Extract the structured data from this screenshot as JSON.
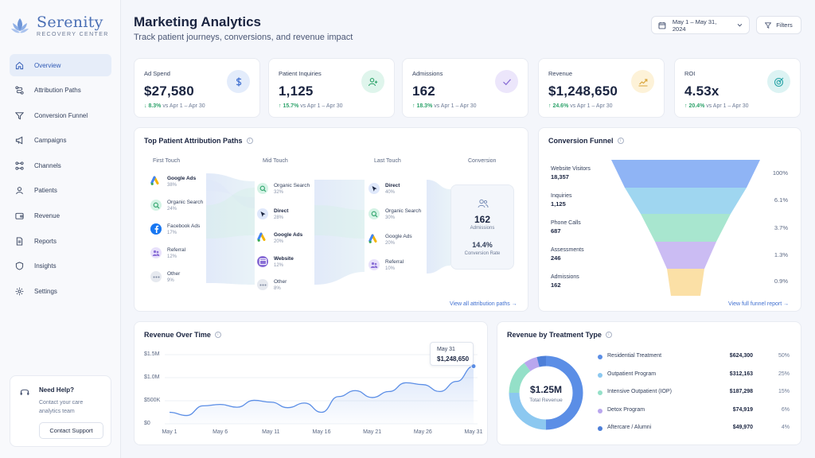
{
  "brand": {
    "name": "Serenity",
    "subtitle": "RECOVERY CENTER"
  },
  "nav": [
    {
      "label": "Overview",
      "icon": "home-icon",
      "active": true
    },
    {
      "label": "Attribution Paths",
      "icon": "paths-icon"
    },
    {
      "label": "Conversion Funnel",
      "icon": "funnel-icon"
    },
    {
      "label": "Campaigns",
      "icon": "megaphone-icon"
    },
    {
      "label": "Channels",
      "icon": "channels-icon"
    },
    {
      "label": "Patients",
      "icon": "user-icon"
    },
    {
      "label": "Revenue",
      "icon": "wallet-icon"
    },
    {
      "label": "Reports",
      "icon": "document-icon"
    },
    {
      "label": "Insights",
      "icon": "shield-icon"
    },
    {
      "label": "Settings",
      "icon": "gear-icon"
    }
  ],
  "help": {
    "title": "Need Help?",
    "desc": "Contact your care analytics team",
    "button": "Contact Support"
  },
  "header": {
    "title": "Marketing Analytics",
    "subtitle": "Track patient journeys, conversions, and revenue impact",
    "date_range": "May 1 – May 31, 2024",
    "filters": "Filters"
  },
  "kpis": [
    {
      "label": "Ad Spend",
      "value": "$27,580",
      "change": "↓ 8.3%",
      "compare": "vs Apr 1 – Apr 30",
      "icon": "dollar-icon",
      "tint": "#e3ecfb",
      "color": "#3f6fd0"
    },
    {
      "label": "Patient Inquiries",
      "value": "1,125",
      "change": "↑ 15.7%",
      "compare": "vs Apr 1 – Apr 30",
      "icon": "users-icon",
      "tint": "#dff5ec",
      "color": "#2ea36b"
    },
    {
      "label": "Admissions",
      "value": "162",
      "change": "↑ 18.3%",
      "compare": "vs Apr 1 – Apr 30",
      "icon": "check-icon",
      "tint": "#ece6fb",
      "color": "#8a6fd6"
    },
    {
      "label": "Revenue",
      "value": "$1,248,650",
      "change": "↑ 24.6%",
      "compare": "vs Apr 1 – Apr 30",
      "icon": "trend-icon",
      "tint": "#fdf2d8",
      "color": "#d9a43a"
    },
    {
      "label": "ROI",
      "value": "4.53x",
      "change": "↑ 20.4%",
      "compare": "vs Apr 1 – Apr 30",
      "icon": "target-icon",
      "tint": "#dcf3f3",
      "color": "#2aa5a8"
    }
  ],
  "attribution": {
    "title": "Top Patient Attribution Paths",
    "columns": [
      "First Touch",
      "Mid Touch",
      "Last Touch",
      "Conversion"
    ],
    "first": [
      {
        "name": "Google Ads",
        "pct": "38%",
        "icon": "google-ads-icon"
      },
      {
        "name": "Organic Search",
        "pct": "24%",
        "icon": "search-icon"
      },
      {
        "name": "Facebook Ads",
        "pct": "17%",
        "icon": "facebook-icon"
      },
      {
        "name": "Referral",
        "pct": "12%",
        "icon": "referral-icon"
      },
      {
        "name": "Other",
        "pct": "9%",
        "icon": "more-icon"
      }
    ],
    "mid": [
      {
        "name": "Organic Search",
        "pct": "32%",
        "icon": "search-icon"
      },
      {
        "name": "Direct",
        "pct": "28%",
        "icon": "cursor-icon"
      },
      {
        "name": "Google Ads",
        "pct": "20%",
        "icon": "google-ads-icon"
      },
      {
        "name": "Website",
        "pct": "12%",
        "icon": "website-icon"
      },
      {
        "name": "Other",
        "pct": "8%",
        "icon": "more-icon"
      }
    ],
    "last": [
      {
        "name": "Direct",
        "pct": "40%",
        "icon": "cursor-icon"
      },
      {
        "name": "Organic Search",
        "pct": "30%",
        "icon": "search-icon"
      },
      {
        "name": "Google Ads",
        "pct": "20%",
        "icon": "google-ads-icon"
      },
      {
        "name": "Referral",
        "pct": "10%",
        "icon": "referral-icon"
      }
    ],
    "conversion": {
      "value": "162",
      "label": "Admissions",
      "rate": "14.4%",
      "rate_label": "Conversion Rate"
    },
    "link": "View all attribution paths →"
  },
  "funnel": {
    "title": "Conversion Funnel",
    "stages": [
      {
        "name": "Website Visitors",
        "value": "18,357",
        "pct": "100%",
        "color": "#8fb4f5"
      },
      {
        "name": "Inquiries",
        "value": "1,125",
        "pct": "6.1%",
        "color": "#9fd6f0"
      },
      {
        "name": "Phone Calls",
        "value": "687",
        "pct": "3.7%",
        "color": "#a8e6cf"
      },
      {
        "name": "Assessments",
        "value": "246",
        "pct": "1.3%",
        "color": "#cbbcf3"
      },
      {
        "name": "Admissions",
        "value": "162",
        "pct": "0.9%",
        "color": "#fbe0a6"
      }
    ],
    "link": "View full funnel report →"
  },
  "revenue_time": {
    "title": "Revenue Over Time",
    "tooltip": {
      "date": "May 31",
      "value": "$1,248,650"
    }
  },
  "chart_data": {
    "type": "area",
    "title": "Revenue Over Time",
    "x": [
      "May 1",
      "May 3",
      "May 5",
      "May 6",
      "May 8",
      "May 10",
      "May 11",
      "May 13",
      "May 15",
      "May 16",
      "May 18",
      "May 20",
      "May 21",
      "May 23",
      "May 25",
      "May 26",
      "May 28",
      "May 30",
      "May 31"
    ],
    "values": [
      250000,
      180000,
      390000,
      420000,
      360000,
      510000,
      470000,
      350000,
      450000,
      250000,
      590000,
      720000,
      570000,
      700000,
      890000,
      850000,
      700000,
      920000,
      1248650
    ],
    "xticks": [
      "May 1",
      "May 6",
      "May 11",
      "May 16",
      "May 21",
      "May 26",
      "May 31"
    ],
    "yticks": [
      "$0",
      "$500K",
      "$1.0M",
      "$1.5M"
    ],
    "ylim": [
      0,
      1500000
    ],
    "color": "#5b8ee6"
  },
  "treatment": {
    "title": "Revenue by Treatment Type",
    "total": "$1.25M",
    "total_label": "Total Revenue",
    "items": [
      {
        "name": "Residential Treatment",
        "amount": "$624,300",
        "pct": "50%",
        "share": 50,
        "color": "#5b8ee6"
      },
      {
        "name": "Outpatient Program",
        "amount": "$312,163",
        "pct": "25%",
        "share": 25,
        "color": "#8cc8f0"
      },
      {
        "name": "Intensive Outpatient (IOP)",
        "amount": "$187,298",
        "pct": "15%",
        "share": 15,
        "color": "#94e0c8"
      },
      {
        "name": "Detox Program",
        "amount": "$74,919",
        "pct": "6%",
        "share": 6,
        "color": "#b9a6ee"
      },
      {
        "name": "Aftercare / Alumni",
        "amount": "$49,970",
        "pct": "4%",
        "share": 4,
        "color": "#4d7fd8"
      }
    ]
  }
}
